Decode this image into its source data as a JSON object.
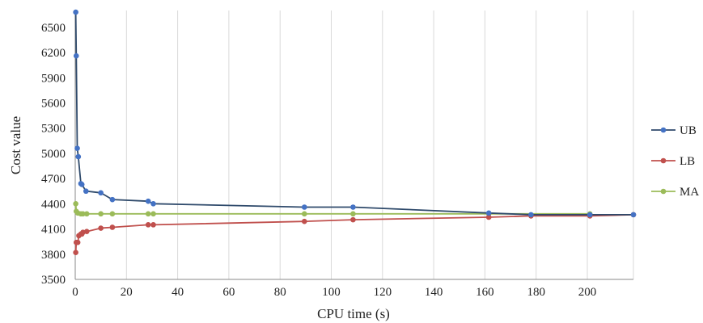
{
  "chart_data": {
    "type": "line",
    "title": "",
    "xlabel": "CPU time (s)",
    "ylabel": "Cost value",
    "xlim": [
      0,
      218
    ],
    "ylim": [
      3500,
      6700
    ],
    "x_ticks": [
      0,
      20,
      40,
      60,
      80,
      100,
      120,
      140,
      160,
      180,
      200
    ],
    "y_ticks": [
      3500,
      3800,
      4100,
      4400,
      4700,
      5000,
      5300,
      5600,
      5900,
      6200,
      6500
    ],
    "grid": "vertical",
    "legend_position": "right",
    "series": [
      {
        "name": "UB",
        "color": "#4472c4",
        "line_color": "#2f4a6b",
        "points": [
          [
            0.2,
            6680
          ],
          [
            0.4,
            6160
          ],
          [
            0.8,
            5060
          ],
          [
            1.2,
            4960
          ],
          [
            2.2,
            4640
          ],
          [
            2.6,
            4630
          ],
          [
            4.2,
            4550
          ],
          [
            10,
            4530
          ],
          [
            14.5,
            4450
          ],
          [
            28.5,
            4430
          ],
          [
            30.5,
            4400
          ],
          [
            89.5,
            4360
          ],
          [
            108.5,
            4360
          ],
          [
            161.5,
            4290
          ],
          [
            178,
            4270
          ],
          [
            201,
            4270
          ],
          [
            218,
            4270
          ]
        ]
      },
      {
        "name": "LB",
        "color": "#c0504d",
        "line_color": "#c0504d",
        "points": [
          [
            0.2,
            3820
          ],
          [
            0.4,
            3940
          ],
          [
            1,
            3940
          ],
          [
            1.4,
            4020
          ],
          [
            2.2,
            4040
          ],
          [
            2.6,
            4040
          ],
          [
            3,
            4060
          ],
          [
            4.5,
            4070
          ],
          [
            10,
            4110
          ],
          [
            14.5,
            4120
          ],
          [
            28.5,
            4150
          ],
          [
            30.5,
            4150
          ],
          [
            89.5,
            4190
          ],
          [
            108.5,
            4210
          ],
          [
            161.5,
            4240
          ],
          [
            178,
            4255
          ],
          [
            201,
            4255
          ],
          [
            218,
            4270
          ]
        ]
      },
      {
        "name": "MA",
        "color": "#9bbb59",
        "line_color": "#9bbb59",
        "points": [
          [
            0.2,
            4400
          ],
          [
            0.4,
            4310
          ],
          [
            1,
            4290
          ],
          [
            2.2,
            4280
          ],
          [
            3,
            4280
          ],
          [
            4.5,
            4280
          ],
          [
            10,
            4280
          ],
          [
            14.5,
            4280
          ],
          [
            28.5,
            4280
          ],
          [
            30.5,
            4280
          ],
          [
            89.5,
            4280
          ],
          [
            108.5,
            4280
          ],
          [
            161.5,
            4280
          ],
          [
            201,
            4280
          ]
        ]
      }
    ]
  }
}
